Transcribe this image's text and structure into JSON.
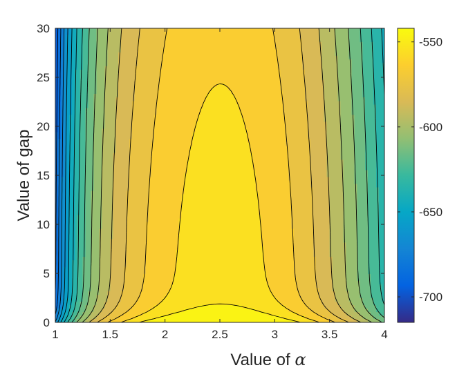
{
  "chart_data": {
    "type": "contour",
    "title": "",
    "xlabel": "Value of α",
    "xlabel_prefix": "Value of ",
    "xlabel_symbol": "α",
    "ylabel": "Value of gap",
    "xlim": [
      1,
      4
    ],
    "ylim": [
      0,
      30
    ],
    "xticks": [
      1,
      1.5,
      2,
      2.5,
      3,
      3.5,
      4
    ],
    "xtick_labels": [
      "1",
      "1.5",
      "2",
      "2.5",
      "3",
      "3.5",
      "4"
    ],
    "yticks": [
      0,
      5,
      10,
      15,
      20,
      25,
      30
    ],
    "ytick_labels": [
      "0",
      "5",
      "10",
      "15",
      "20",
      "25",
      "30"
    ],
    "colorbar": {
      "range": [
        -715,
        -542
      ],
      "ticks": [
        -550,
        -600,
        -650,
        -700
      ],
      "tick_labels": [
        "-550",
        "-600",
        "-650",
        "-700"
      ],
      "colormap": "parula"
    },
    "peak": {
      "x": 2.5,
      "y": 5,
      "value": -543
    },
    "min_region": {
      "x": 1.0,
      "y_range": [
        0,
        30
      ],
      "value": -715
    },
    "contour_levels": [
      -710,
      -700,
      -690,
      -680,
      -670,
      -660,
      -650,
      -640,
      -630,
      -620,
      -610,
      -600,
      -590,
      -580,
      -570,
      -560,
      -550
    ],
    "grid": false,
    "legend": "none"
  },
  "colors": {
    "parula_stops": [
      "#352a87",
      "#0363e1",
      "#1485d4",
      "#06a7c6",
      "#38b99e",
      "#92bf73",
      "#d9ba56",
      "#fcce2e",
      "#f9fb0e"
    ],
    "contour_line": "#000000",
    "axis": "#262626"
  }
}
